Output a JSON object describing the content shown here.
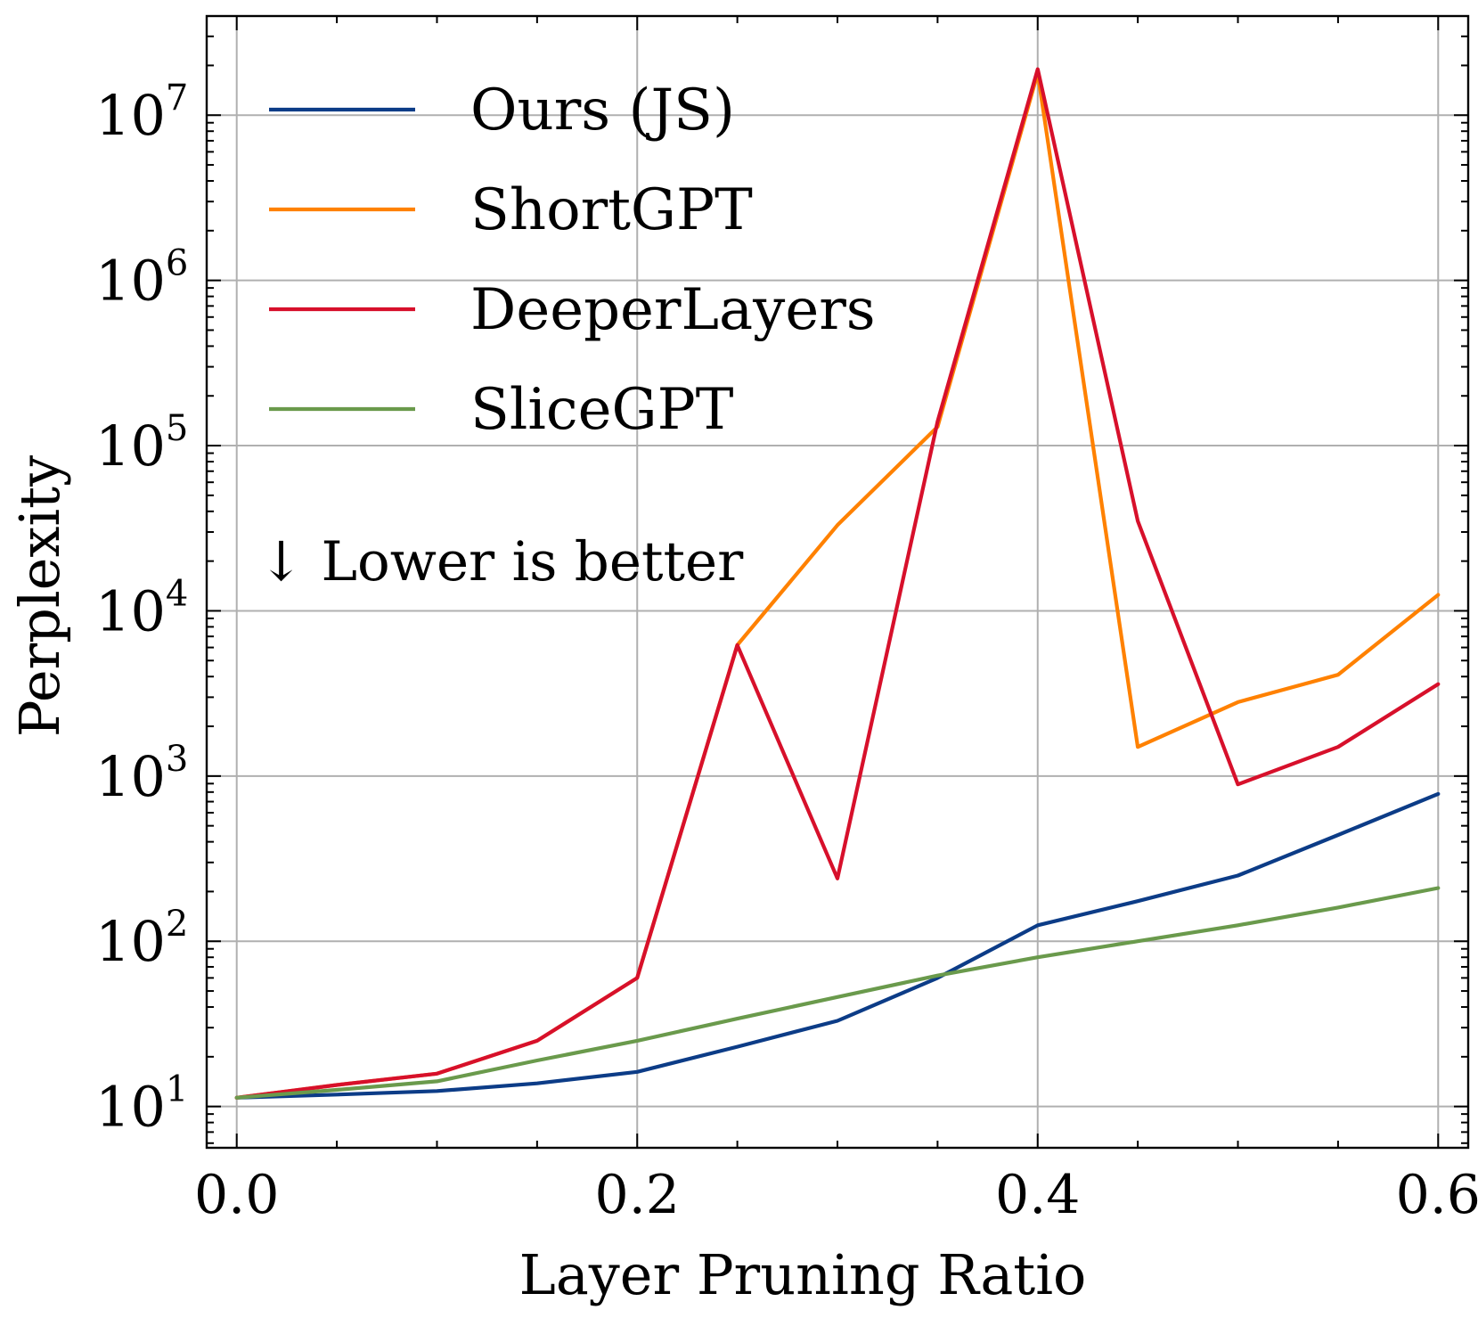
{
  "chart_data": {
    "type": "line",
    "title": "",
    "xlabel": "Layer Pruning Ratio",
    "ylabel": "Perplexity",
    "x_scale": "linear",
    "y_scale": "log",
    "xlim": [
      -0.015,
      0.615
    ],
    "ylim_log10": [
      0.75,
      7.6
    ],
    "grid": true,
    "legend_position": "top-left",
    "x": [
      0.0,
      0.05,
      0.1,
      0.15,
      0.2,
      0.25,
      0.3,
      0.35,
      0.4,
      0.45,
      0.5,
      0.55,
      0.6
    ],
    "x_ticks": [
      {
        "value": 0.0,
        "label": "0.0"
      },
      {
        "value": 0.2,
        "label": "0.2"
      },
      {
        "value": 0.4,
        "label": "0.4"
      },
      {
        "value": 0.6,
        "label": "0.6"
      }
    ],
    "x_minor_ticks": [
      0.05,
      0.1,
      0.15,
      0.25,
      0.3,
      0.35,
      0.45,
      0.5,
      0.55
    ],
    "y_ticks": [
      {
        "exp": 1,
        "base": "10",
        "power": "1"
      },
      {
        "exp": 2,
        "base": "10",
        "power": "2"
      },
      {
        "exp": 3,
        "base": "10",
        "power": "3"
      },
      {
        "exp": 4,
        "base": "10",
        "power": "4"
      },
      {
        "exp": 5,
        "base": "10",
        "power": "5"
      },
      {
        "exp": 6,
        "base": "10",
        "power": "6"
      },
      {
        "exp": 7,
        "base": "10",
        "power": "7"
      }
    ],
    "series": [
      {
        "name": "Ours (JS)",
        "color": "#0C3C87",
        "values": [
          11.3,
          11.8,
          12.4,
          13.8,
          16.2,
          23,
          33,
          60,
          125,
          175,
          250,
          440,
          780
        ]
      },
      {
        "name": "ShortGPT",
        "color": "#FF8100",
        "values": [
          11.3,
          13.5,
          15.8,
          25,
          60,
          6200,
          33000,
          130000,
          18000000,
          1500,
          2800,
          4100,
          12500
        ]
      },
      {
        "name": "DeeperLayers",
        "color": "#D7102B",
        "values": [
          11.3,
          13.5,
          15.8,
          25,
          60,
          6200,
          240,
          140000,
          19000000,
          35000,
          890,
          1500,
          3600
        ]
      },
      {
        "name": "SliceGPT",
        "color": "#6A9A4C",
        "values": [
          11.3,
          12.6,
          14.2,
          19,
          25,
          34,
          46,
          62,
          80,
          100,
          125,
          160,
          210
        ]
      }
    ],
    "annotations": [
      {
        "text": "↓ Lower is better"
      }
    ]
  }
}
